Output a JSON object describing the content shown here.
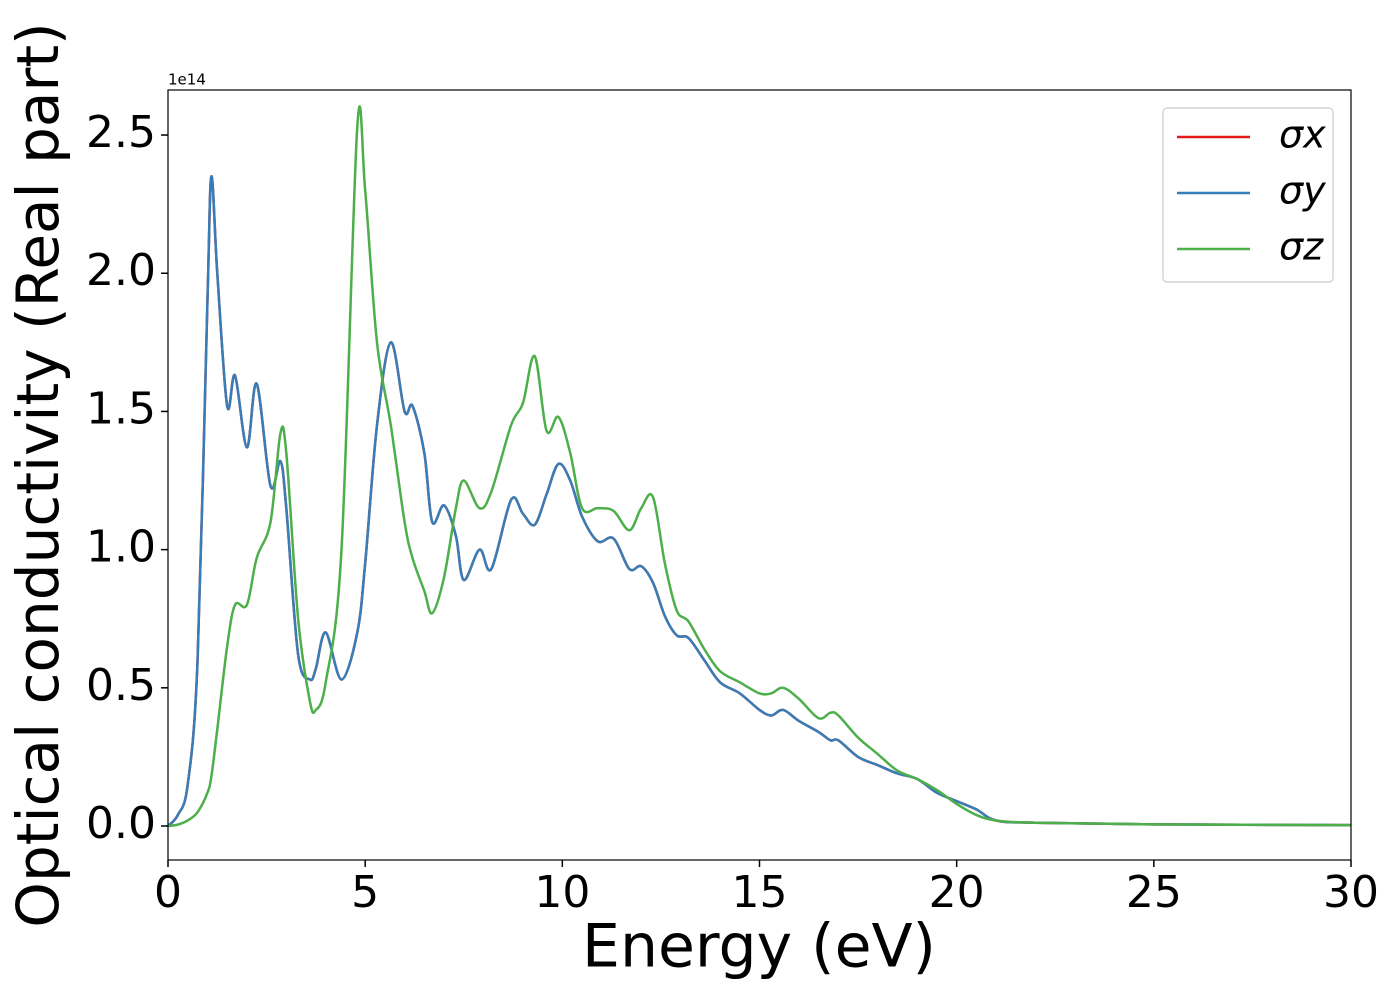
{
  "chart_data": {
    "type": "line",
    "xlabel": "Energy (eV)",
    "ylabel": "Optical conductivity (Real part)",
    "y_offset_label": "1e14",
    "x": [
      0,
      0.25,
      0.5,
      0.75,
      1.0,
      1.1,
      1.25,
      1.5,
      1.7,
      2.0,
      2.25,
      2.6,
      2.85,
      3.0,
      3.3,
      3.6,
      3.75,
      4.0,
      4.4,
      4.8,
      5.0,
      5.3,
      5.65,
      6.0,
      6.2,
      6.5,
      6.7,
      7.0,
      7.3,
      7.5,
      7.9,
      8.2,
      8.7,
      9.0,
      9.3,
      9.6,
      9.9,
      10.2,
      10.5,
      10.9,
      11.3,
      11.7,
      12.0,
      12.3,
      12.6,
      12.9,
      13.2,
      13.6,
      14.0,
      14.5,
      15.0,
      15.3,
      15.6,
      16.0,
      16.5,
      16.8,
      17.0,
      17.5,
      18.0,
      18.5,
      19.0,
      19.5,
      20.0,
      20.5,
      21.0,
      22,
      25,
      30
    ],
    "series": [
      {
        "name": "σx",
        "color": "#e41a1c",
        "values": [
          0,
          0.04,
          0.15,
          0.6,
          1.9,
          2.35,
          2.0,
          1.52,
          1.63,
          1.37,
          1.6,
          1.23,
          1.32,
          1.15,
          0.62,
          0.53,
          0.57,
          0.7,
          0.53,
          0.7,
          0.95,
          1.45,
          1.75,
          1.5,
          1.52,
          1.35,
          1.1,
          1.16,
          1.05,
          0.89,
          1.0,
          0.93,
          1.18,
          1.13,
          1.09,
          1.2,
          1.31,
          1.25,
          1.12,
          1.03,
          1.04,
          0.93,
          0.94,
          0.88,
          0.76,
          0.69,
          0.68,
          0.6,
          0.52,
          0.48,
          0.42,
          0.4,
          0.42,
          0.38,
          0.34,
          0.31,
          0.31,
          0.25,
          0.22,
          0.19,
          0.17,
          0.12,
          0.09,
          0.06,
          0.02,
          0.012,
          0.006,
          0.003
        ]
      },
      {
        "name": "σy",
        "color": "#377eb8",
        "values": [
          0,
          0.04,
          0.15,
          0.6,
          1.9,
          2.35,
          2.0,
          1.52,
          1.63,
          1.37,
          1.6,
          1.23,
          1.32,
          1.15,
          0.62,
          0.53,
          0.57,
          0.7,
          0.53,
          0.7,
          0.95,
          1.45,
          1.75,
          1.5,
          1.52,
          1.35,
          1.1,
          1.16,
          1.05,
          0.89,
          1.0,
          0.93,
          1.18,
          1.13,
          1.09,
          1.2,
          1.31,
          1.25,
          1.12,
          1.03,
          1.04,
          0.93,
          0.94,
          0.88,
          0.76,
          0.69,
          0.68,
          0.6,
          0.52,
          0.48,
          0.42,
          0.4,
          0.42,
          0.38,
          0.34,
          0.31,
          0.31,
          0.25,
          0.22,
          0.19,
          0.17,
          0.12,
          0.09,
          0.06,
          0.02,
          0.012,
          0.006,
          0.003
        ]
      },
      {
        "name": "σz",
        "color": "#4daf4a",
        "values": [
          0,
          0.005,
          0.02,
          0.05,
          0.12,
          0.18,
          0.35,
          0.65,
          0.8,
          0.8,
          0.97,
          1.1,
          1.42,
          1.35,
          0.75,
          0.45,
          0.42,
          0.52,
          1.0,
          2.53,
          2.3,
          1.75,
          1.45,
          1.1,
          0.97,
          0.85,
          0.77,
          0.9,
          1.15,
          1.25,
          1.15,
          1.21,
          1.45,
          1.53,
          1.7,
          1.43,
          1.48,
          1.35,
          1.15,
          1.15,
          1.14,
          1.07,
          1.15,
          1.19,
          0.95,
          0.78,
          0.74,
          0.64,
          0.56,
          0.52,
          0.48,
          0.48,
          0.5,
          0.46,
          0.39,
          0.41,
          0.4,
          0.32,
          0.26,
          0.2,
          0.17,
          0.13,
          0.08,
          0.04,
          0.02,
          0.012,
          0.006,
          0.003
        ]
      }
    ],
    "xlim": [
      0,
      30
    ],
    "xticks": [
      0,
      5,
      10,
      15,
      20,
      25,
      30
    ],
    "ylim": [
      -0.123,
      2.663
    ],
    "yticks": [
      {
        "value": 0,
        "label": "0.0"
      },
      0.5,
      {
        "value": 1,
        "label": "1.0"
      },
      1.5,
      {
        "value": 2,
        "label": "2.0"
      },
      2.5
    ],
    "grid": false,
    "legend": "upper right"
  }
}
